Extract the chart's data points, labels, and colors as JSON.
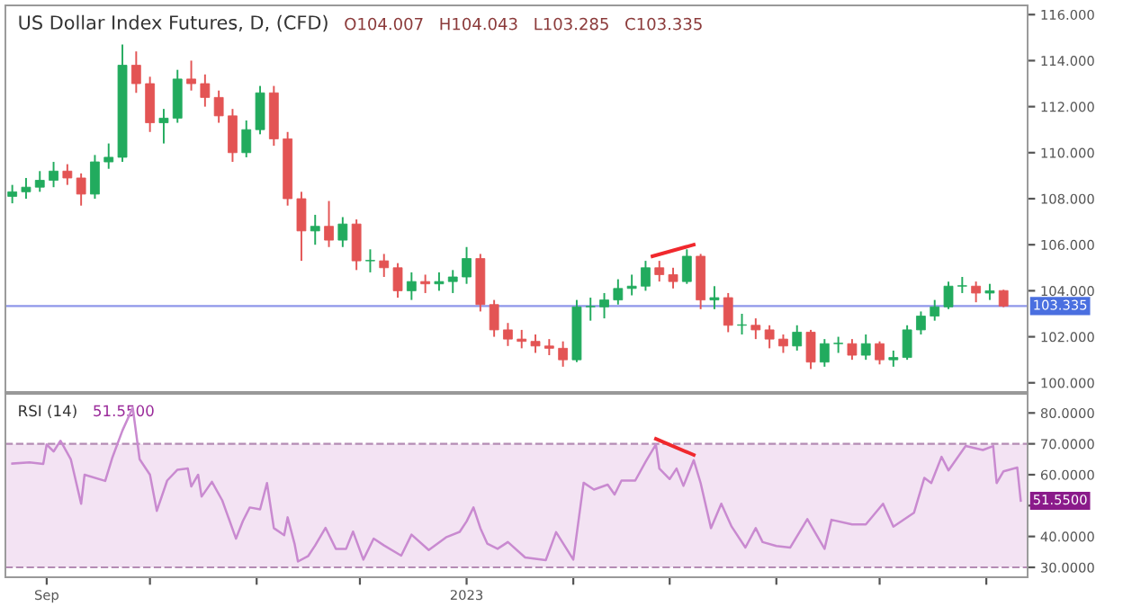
{
  "chart_data": [
    {
      "type": "candlestick",
      "title": "US Dollar Index Futures, D, (CFD)",
      "annotations": [
        "O104.007",
        "H104.043",
        "L103.285",
        "C103.335"
      ],
      "series": [
        {
          "type": "candlestick",
          "x": [
            "2022-08-22",
            "2022-08-26",
            "2022-08-30",
            "2022-09-03",
            "2022-09-07",
            "2022-09-11",
            "2022-09-15",
            "2022-09-19",
            "2022-09-23",
            "2022-09-27",
            "2022-10-01",
            "2022-10-05",
            "2022-10-09",
            "2022-10-13",
            "2022-10-17",
            "2022-10-21",
            "2022-10-25",
            "2022-10-29",
            "2022-11-02",
            "2022-11-06",
            "2022-11-10",
            "2022-11-14",
            "2022-11-18",
            "2022-11-22",
            "2022-11-26",
            "2022-11-30",
            "2022-12-04",
            "2022-12-08",
            "2022-12-12",
            "2022-12-16",
            "2022-12-20",
            "2022-12-24",
            "2022-12-28",
            "2023-01-01",
            "2023-01-05",
            "2023-01-09",
            "2023-01-13",
            "2023-01-17",
            "2023-01-21",
            "2023-01-25",
            "2023-01-29",
            "2023-02-02",
            "2023-02-06",
            "2023-02-10",
            "2023-02-14",
            "2023-02-18",
            "2023-02-22",
            "2023-02-26",
            "2023-03-02",
            "2023-03-06",
            "2023-03-10",
            "2023-03-14",
            "2023-03-18",
            "2023-03-22",
            "2023-03-26",
            "2023-03-30",
            "2023-04-03",
            "2023-04-07",
            "2023-04-11",
            "2023-04-15",
            "2023-04-19",
            "2023-04-23",
            "2023-04-27",
            "2023-05-01",
            "2023-05-05",
            "2023-05-09",
            "2023-05-13",
            "2023-05-17",
            "2023-05-21",
            "2023-05-25",
            "2023-05-29",
            "2023-06-02",
            "2023-06-06"
          ],
          "ohlc": [
            [
              108.1,
              108.6,
              107.8,
              108.3
            ],
            [
              108.3,
              108.9,
              108.0,
              108.5
            ],
            [
              108.5,
              109.2,
              108.3,
              108.8
            ],
            [
              108.8,
              109.6,
              108.5,
              109.2
            ],
            [
              109.2,
              109.5,
              108.6,
              108.9
            ],
            [
              108.9,
              109.1,
              107.7,
              108.2
            ],
            [
              108.2,
              109.9,
              108.0,
              109.6
            ],
            [
              109.6,
              110.4,
              109.3,
              109.8
            ],
            [
              109.8,
              114.7,
              109.6,
              113.8
            ],
            [
              113.8,
              114.4,
              112.6,
              113.0
            ],
            [
              113.0,
              113.3,
              110.9,
              111.3
            ],
            [
              111.3,
              111.9,
              110.4,
              111.5
            ],
            [
              111.5,
              113.6,
              111.3,
              113.2
            ],
            [
              113.2,
              114.0,
              112.7,
              113.0
            ],
            [
              113.0,
              113.4,
              112.0,
              112.4
            ],
            [
              112.4,
              112.7,
              111.3,
              111.6
            ],
            [
              111.6,
              111.9,
              109.6,
              110.0
            ],
            [
              110.0,
              111.4,
              109.8,
              111.0
            ],
            [
              111.0,
              112.9,
              110.8,
              112.6
            ],
            [
              112.6,
              112.9,
              110.3,
              110.6
            ],
            [
              110.6,
              110.9,
              107.7,
              108.0
            ],
            [
              108.0,
              108.3,
              105.3,
              106.6
            ],
            [
              106.6,
              107.3,
              106.0,
              106.8
            ],
            [
              106.8,
              107.9,
              105.9,
              106.2
            ],
            [
              106.2,
              107.2,
              105.9,
              106.9
            ],
            [
              106.9,
              107.1,
              104.9,
              105.3
            ],
            [
              105.3,
              105.8,
              104.8,
              105.3
            ],
            [
              105.3,
              105.6,
              104.6,
              105.0
            ],
            [
              105.0,
              105.2,
              103.7,
              104.0
            ],
            [
              104.0,
              104.8,
              103.6,
              104.4
            ],
            [
              104.4,
              104.7,
              103.9,
              104.3
            ],
            [
              104.3,
              104.8,
              104.0,
              104.4
            ],
            [
              104.4,
              104.9,
              103.9,
              104.6
            ],
            [
              104.6,
              105.9,
              104.3,
              105.4
            ],
            [
              105.4,
              105.6,
              103.1,
              103.4
            ],
            [
              103.4,
              103.6,
              102.0,
              102.3
            ],
            [
              102.3,
              102.6,
              101.6,
              101.9
            ],
            [
              101.9,
              102.3,
              101.5,
              101.8
            ],
            [
              101.8,
              102.1,
              101.3,
              101.6
            ],
            [
              101.6,
              101.9,
              101.2,
              101.5
            ],
            [
              101.5,
              101.8,
              100.7,
              101.0
            ],
            [
              101.0,
              103.6,
              100.9,
              103.3
            ],
            [
              103.3,
              103.7,
              102.7,
              103.3
            ],
            [
              103.3,
              103.9,
              102.8,
              103.6
            ],
            [
              103.6,
              104.5,
              103.4,
              104.1
            ],
            [
              104.1,
              104.7,
              103.8,
              104.2
            ],
            [
              104.2,
              105.3,
              104.0,
              105.0
            ],
            [
              105.0,
              105.3,
              104.4,
              104.7
            ],
            [
              104.7,
              105.0,
              104.1,
              104.4
            ],
            [
              104.4,
              105.8,
              104.3,
              105.5
            ],
            [
              105.5,
              105.6,
              103.2,
              103.6
            ],
            [
              103.6,
              104.2,
              103.2,
              103.7
            ],
            [
              103.7,
              103.9,
              102.2,
              102.5
            ],
            [
              102.5,
              103.0,
              102.1,
              102.5
            ],
            [
              102.5,
              102.8,
              101.9,
              102.3
            ],
            [
              102.3,
              102.5,
              101.5,
              101.9
            ],
            [
              101.9,
              102.1,
              101.3,
              101.6
            ],
            [
              101.6,
              102.5,
              101.4,
              102.2
            ],
            [
              102.2,
              102.3,
              100.6,
              100.9
            ],
            [
              100.9,
              101.9,
              100.7,
              101.7
            ],
            [
              101.7,
              102.0,
              101.3,
              101.7
            ],
            [
              101.7,
              101.9,
              101.0,
              101.2
            ],
            [
              101.2,
              102.1,
              101.0,
              101.7
            ],
            [
              101.7,
              101.8,
              100.8,
              101.0
            ],
            [
              101.0,
              101.4,
              100.7,
              101.1
            ],
            [
              101.1,
              102.5,
              101.0,
              102.3
            ],
            [
              102.3,
              103.1,
              102.1,
              102.9
            ],
            [
              102.9,
              103.6,
              102.7,
              103.3
            ],
            [
              103.3,
              104.4,
              103.2,
              104.2
            ],
            [
              104.2,
              104.6,
              103.9,
              104.2
            ],
            [
              104.2,
              104.4,
              103.5,
              103.9
            ],
            [
              103.9,
              104.3,
              103.6,
              104.0
            ],
            [
              104.007,
              104.043,
              103.285,
              103.335
            ]
          ]
        },
        {
          "type": "line",
          "color": "#f0282d",
          "x": [
            "2023-02-24",
            "2023-03-08"
          ],
          "values": [
            105.5,
            106.0
          ]
        }
      ],
      "xlim": [
        "2022-08-20",
        "2023-06-13"
      ],
      "xticks": [
        {
          "value": "2022-09-01",
          "label": null
        },
        {
          "value": "2022-10-01",
          "label": null
        },
        {
          "value": "2022-11-01",
          "label": null
        },
        {
          "value": "2022-12-01",
          "label": null
        },
        {
          "value": "2023-01-01",
          "label": null
        },
        {
          "value": "2023-02-01",
          "label": null
        },
        {
          "value": "2023-03-01",
          "label": null
        },
        {
          "value": "2023-04-01",
          "label": null
        },
        {
          "value": "2023-05-01",
          "label": null
        },
        {
          "value": "2023-06-01",
          "label": null
        }
      ],
      "ylim": [
        99.6,
        116.4
      ],
      "yticks": [
        {
          "value": 100,
          "label": "100.000"
        },
        {
          "value": 102,
          "label": "102.000"
        },
        {
          "value": 104,
          "label": "104.000"
        },
        {
          "value": 106,
          "label": "106.000"
        },
        {
          "value": 108,
          "label": "108.000"
        },
        {
          "value": 110,
          "label": "110.000"
        },
        {
          "value": 112,
          "label": "112.000"
        },
        {
          "value": 114,
          "label": "114.000"
        },
        {
          "value": 116,
          "label": "116.000"
        }
      ],
      "ref_lines": [
        {
          "axis": "y",
          "value": 103.335,
          "label": "103.335",
          "color": "#8f97ea"
        }
      ],
      "tick_labels": "y",
      "grid": false,
      "legend": false
    },
    {
      "type": "line",
      "title": "RSI (14)",
      "annotations": [
        "51.5500",
        {
          "text": "51.5500",
          "x": "2023-06-11",
          "y": 51.55
        }
      ],
      "series": [
        {
          "color": "#c98ad0",
          "x": [
            "2022-08-22",
            "2022-08-27",
            "2022-08-31",
            "2022-09-01",
            "2022-09-03",
            "2022-09-05",
            "2022-09-08",
            "2022-09-11",
            "2022-09-12",
            "2022-09-18",
            "2022-09-20",
            "2022-09-23",
            "2022-09-26",
            "2022-09-28",
            "2022-10-01",
            "2022-10-03",
            "2022-10-06",
            "2022-10-09",
            "2022-10-12",
            "2022-10-13",
            "2022-10-15",
            "2022-10-16",
            "2022-10-19",
            "2022-10-22",
            "2022-10-26",
            "2022-10-28",
            "2022-10-30",
            "2022-11-02",
            "2022-11-04",
            "2022-11-06",
            "2022-11-09",
            "2022-11-10",
            "2022-11-12",
            "2022-11-13",
            "2022-11-16",
            "2022-11-18",
            "2022-11-21",
            "2022-11-24",
            "2022-11-27",
            "2022-11-29",
            "2022-12-02",
            "2022-12-05",
            "2022-12-08",
            "2022-12-13",
            "2022-12-16",
            "2022-12-21",
            "2022-12-26",
            "2022-12-30",
            "2023-01-01",
            "2023-01-03",
            "2023-01-05",
            "2023-01-07",
            "2023-01-10",
            "2023-01-13",
            "2023-01-18",
            "2023-01-24",
            "2023-01-27",
            "2023-02-01",
            "2023-02-04",
            "2023-02-07",
            "2023-02-11",
            "2023-02-13",
            "2023-02-15",
            "2023-02-19",
            "2023-02-22",
            "2023-02-25",
            "2023-02-26",
            "2023-03-01",
            "2023-03-03",
            "2023-03-05",
            "2023-03-08",
            "2023-03-10",
            "2023-03-13",
            "2023-03-16",
            "2023-03-19",
            "2023-03-23",
            "2023-03-26",
            "2023-03-28",
            "2023-04-01",
            "2023-04-05",
            "2023-04-10",
            "2023-04-15",
            "2023-04-17",
            "2023-04-23",
            "2023-04-27",
            "2023-05-02",
            "2023-05-05",
            "2023-05-11",
            "2023-05-14",
            "2023-05-16",
            "2023-05-19",
            "2023-05-21",
            "2023-05-26",
            "2023-05-31",
            "2023-06-03",
            "2023-06-04",
            "2023-06-06",
            "2023-06-10",
            "2023-06-11"
          ],
          "values": [
            63.6,
            64,
            63.5,
            69.8,
            67.5,
            71,
            65,
            50.6,
            60,
            58,
            65.3,
            74.3,
            81.7,
            65,
            60,
            48.3,
            58.1,
            61.6,
            62,
            56.2,
            60,
            52.9,
            57.7,
            51.7,
            39.3,
            45,
            49.4,
            48.8,
            57.3,
            42.7,
            40.4,
            46.2,
            37.7,
            31.9,
            33.7,
            37.1,
            42.8,
            36,
            36,
            41.6,
            32.5,
            39.3,
            37.1,
            33.8,
            40.6,
            35.6,
            39.7,
            41.5,
            44.9,
            49.4,
            42.7,
            37.7,
            36,
            38.2,
            33.2,
            32.3,
            41.4,
            32.5,
            57.4,
            55.2,
            56.8,
            53.6,
            58.1,
            58.1,
            64.2,
            69.8,
            62,
            58.6,
            62,
            56.4,
            64.7,
            57.3,
            42.7,
            50.6,
            43.2,
            36.4,
            42.7,
            38.2,
            36.9,
            36.4,
            45.6,
            36,
            45.4,
            43.9,
            43.9,
            50.6,
            43.2,
            47.7,
            59,
            57.3,
            65.8,
            61.4,
            69.3,
            68,
            69.3,
            57.3,
            61.1,
            62.3,
            51.6
          ]
        },
        {
          "color": "#f0282d",
          "x": [
            "2023-02-25",
            "2023-03-08"
          ],
          "values": [
            71.6,
            66.4
          ]
        }
      ],
      "xlim": [
        "2022-08-20",
        "2023-06-13"
      ],
      "xticks": [
        {
          "value": "2022-09-01",
          "label": "Sep"
        },
        {
          "value": "2022-10-01",
          "label": null
        },
        {
          "value": "2022-11-01",
          "label": null
        },
        {
          "value": "2022-12-01",
          "label": null
        },
        {
          "value": "2023-01-01",
          "label": "2023"
        },
        {
          "value": "2023-02-01",
          "label": null
        },
        {
          "value": "2023-03-01",
          "label": null
        },
        {
          "value": "2023-04-01",
          "label": null
        },
        {
          "value": "2023-05-01",
          "label": null
        },
        {
          "value": "2023-06-01",
          "label": null
        }
      ],
      "ylim": [
        26.8,
        86.2
      ],
      "yticks": [
        {
          "value": 30,
          "label": "30.0000"
        },
        {
          "value": 40,
          "label": "40.0000"
        },
        {
          "value": 50,
          "label": null
        },
        {
          "value": 60,
          "label": "60.0000"
        },
        {
          "value": 70,
          "label": "70.0000"
        },
        {
          "value": 80,
          "label": "80.0000"
        }
      ],
      "bands": [
        {
          "axis": "y",
          "from": 30,
          "to": 70,
          "color": "#f3e3f3"
        }
      ],
      "ref_lines": [
        {
          "axis": "y",
          "value": 30,
          "color": "#b48cb4",
          "line_style": "dashed"
        },
        {
          "axis": "y",
          "value": 70,
          "color": "#b48cb4",
          "line_style": "dashed"
        }
      ],
      "grid": false,
      "legend": false
    }
  ]
}
